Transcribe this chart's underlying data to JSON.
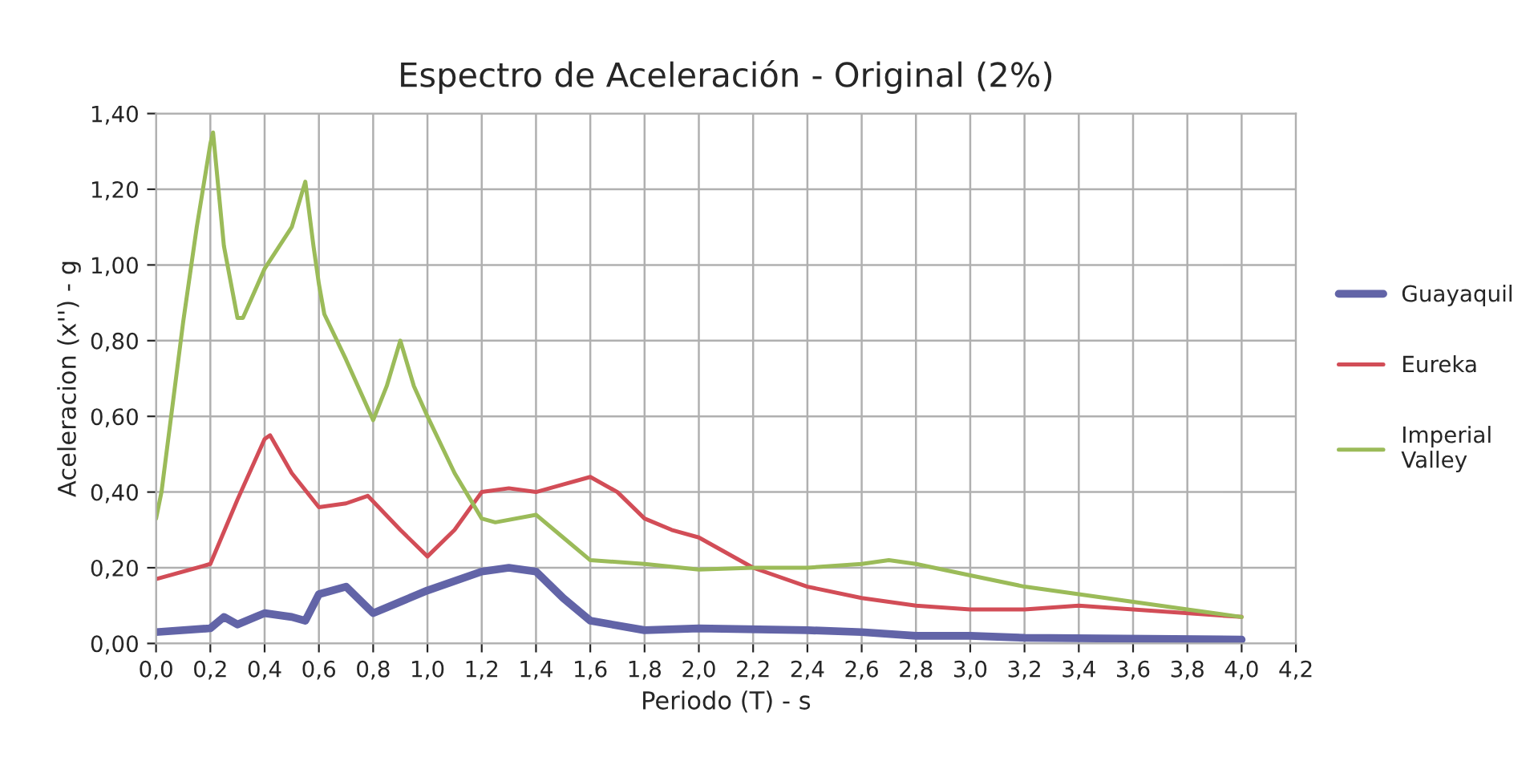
{
  "chart_data": {
    "type": "line",
    "title": "Espectro de Aceleración - Original (2%)",
    "xlabel": "Periodo (T) - s",
    "ylabel": "Aceleracion (x'') - g",
    "xlim": [
      0,
      4.2
    ],
    "xticks": [
      {
        "value": 0,
        "label": "0,0"
      },
      {
        "value": 0.2,
        "label": "0,2"
      },
      {
        "value": 0.4,
        "label": "0,4"
      },
      {
        "value": 0.6,
        "label": "0,6"
      },
      {
        "value": 0.8,
        "label": "0,8"
      },
      {
        "value": 1.0,
        "label": "1,0"
      },
      {
        "value": 1.2,
        "label": "1,2"
      },
      {
        "value": 1.4,
        "label": "1,4"
      },
      {
        "value": 1.6,
        "label": "1,6"
      },
      {
        "value": 1.8,
        "label": "1,8"
      },
      {
        "value": 2.0,
        "label": "2,0"
      },
      {
        "value": 2.2,
        "label": "2,2"
      },
      {
        "value": 2.4,
        "label": "2,4"
      },
      {
        "value": 2.6,
        "label": "2,6"
      },
      {
        "value": 2.8,
        "label": "2,8"
      },
      {
        "value": 3.0,
        "label": "3,0"
      },
      {
        "value": 3.2,
        "label": "3,2"
      },
      {
        "value": 3.4,
        "label": "3,4"
      },
      {
        "value": 3.6,
        "label": "3,6"
      },
      {
        "value": 3.8,
        "label": "3,8"
      },
      {
        "value": 4.0,
        "label": "4,0"
      },
      {
        "value": 4.2,
        "label": "4,2"
      }
    ],
    "ylim": [
      0,
      1.4
    ],
    "yticks": [
      {
        "value": 0,
        "label": "0,00"
      },
      {
        "value": 0.2,
        "label": "0,20"
      },
      {
        "value": 0.4,
        "label": "0,40"
      },
      {
        "value": 0.6,
        "label": "0,60"
      },
      {
        "value": 0.8,
        "label": "0,80"
      },
      {
        "value": 1.0,
        "label": "1,00"
      },
      {
        "value": 1.2,
        "label": "1,20"
      },
      {
        "value": 1.4,
        "label": "1,40"
      }
    ],
    "grid": true,
    "legend": "right",
    "series": [
      {
        "name": "Guayaquil",
        "color": "#6264a7",
        "x": [
          0.0,
          0.2,
          0.25,
          0.3,
          0.4,
          0.5,
          0.55,
          0.6,
          0.7,
          0.8,
          0.9,
          1.0,
          1.2,
          1.3,
          1.4,
          1.5,
          1.6,
          1.8,
          2.0,
          2.4,
          2.6,
          2.8,
          3.0,
          3.2,
          4.0
        ],
        "values": [
          0.03,
          0.04,
          0.07,
          0.05,
          0.08,
          0.07,
          0.06,
          0.13,
          0.15,
          0.08,
          0.11,
          0.14,
          0.19,
          0.2,
          0.19,
          0.12,
          0.06,
          0.035,
          0.04,
          0.035,
          0.03,
          0.02,
          0.02,
          0.015,
          0.01
        ]
      },
      {
        "name": "Eureka",
        "color": "#d24d57",
        "x": [
          0.0,
          0.2,
          0.3,
          0.4,
          0.42,
          0.5,
          0.6,
          0.7,
          0.78,
          0.9,
          1.0,
          1.1,
          1.2,
          1.3,
          1.4,
          1.5,
          1.6,
          1.7,
          1.8,
          1.9,
          2.0,
          2.2,
          2.4,
          2.6,
          2.8,
          3.0,
          3.2,
          3.4,
          3.6,
          4.0
        ],
        "values": [
          0.17,
          0.21,
          0.38,
          0.54,
          0.55,
          0.45,
          0.36,
          0.37,
          0.39,
          0.3,
          0.23,
          0.3,
          0.4,
          0.41,
          0.4,
          0.42,
          0.44,
          0.4,
          0.33,
          0.3,
          0.28,
          0.2,
          0.15,
          0.12,
          0.1,
          0.09,
          0.09,
          0.1,
          0.09,
          0.07
        ]
      },
      {
        "name": "Imperial\nValley",
        "color": "#9bbb59",
        "x": [
          0.0,
          0.02,
          0.1,
          0.15,
          0.2,
          0.21,
          0.25,
          0.3,
          0.32,
          0.4,
          0.5,
          0.55,
          0.58,
          0.6,
          0.62,
          0.7,
          0.8,
          0.85,
          0.9,
          0.95,
          1.0,
          1.1,
          1.2,
          1.25,
          1.4,
          1.5,
          1.6,
          1.8,
          2.0,
          2.2,
          2.4,
          2.6,
          2.7,
          2.8,
          3.0,
          3.2,
          3.4,
          3.6,
          3.8,
          4.0
        ],
        "values": [
          0.33,
          0.4,
          0.85,
          1.1,
          1.32,
          1.35,
          1.05,
          0.86,
          0.86,
          0.99,
          1.1,
          1.22,
          1.05,
          0.95,
          0.87,
          0.75,
          0.59,
          0.68,
          0.8,
          0.68,
          0.6,
          0.45,
          0.33,
          0.32,
          0.34,
          0.28,
          0.22,
          0.21,
          0.195,
          0.2,
          0.2,
          0.21,
          0.22,
          0.21,
          0.18,
          0.15,
          0.13,
          0.11,
          0.09,
          0.07
        ]
      }
    ]
  }
}
